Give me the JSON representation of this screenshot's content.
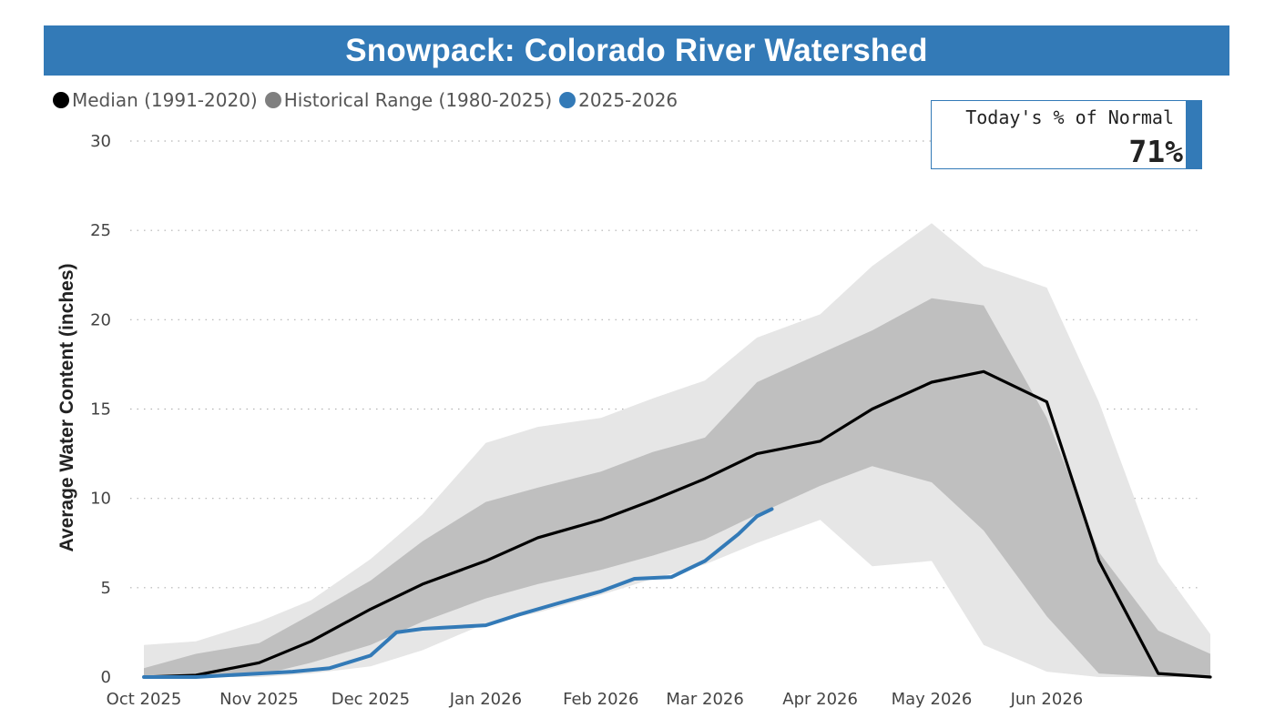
{
  "title": "Snowpack: Colorado River Watershed",
  "legend": {
    "median_label": "Median (1991-2020)",
    "range_label": "Historical Range (1980-2025)",
    "current_label": "2025-2026"
  },
  "kpi": {
    "label": "Today's % of Normal",
    "value": "71%"
  },
  "colors": {
    "header": "#337ab7",
    "median": "#000000",
    "range_legend": "#7f7f7f",
    "range_outer": "#e6e6e6",
    "range_inner": "#bfbfbf",
    "current": "#337ab7"
  },
  "chart_data": {
    "type": "line",
    "xlabel": "",
    "ylabel": "Average Water Content (inches)",
    "ylim": [
      0,
      30
    ],
    "yticks": [
      0,
      5,
      10,
      15,
      20,
      25,
      30
    ],
    "xticks": [
      "Oct 2025",
      "Nov 2025",
      "Dec 2025",
      "Jan 2026",
      "Feb 2026",
      "Mar 2026",
      "Apr 2026",
      "May 2026",
      "Jun 2026"
    ],
    "grid": true,
    "legend_position": "top-left",
    "x": [
      "Oct 1",
      "Oct 15",
      "Nov 1",
      "Nov 15",
      "Dec 1",
      "Dec 15",
      "Jan 1",
      "Jan 15",
      "Feb 1",
      "Feb 15",
      "Mar 1",
      "Mar 15",
      "Apr 1",
      "Apr 15",
      "May 1",
      "May 15",
      "Jun 1",
      "Jun 15",
      "Jul 1",
      "Jul 15"
    ],
    "series": [
      {
        "name": "Median (1991-2020)",
        "values": [
          0,
          0.1,
          0.8,
          2.0,
          3.8,
          5.2,
          6.5,
          7.8,
          8.8,
          9.9,
          11.1,
          12.5,
          13.2,
          15.0,
          16.5,
          17.1,
          15.4,
          6.5,
          0.2,
          0
        ]
      },
      {
        "name": "Historical Range (1980-2025) inner low",
        "values": [
          0,
          0,
          0.1,
          0.8,
          1.8,
          3.1,
          4.4,
          5.2,
          6.0,
          6.8,
          7.7,
          9.1,
          10.7,
          11.8,
          10.9,
          8.2,
          3.4,
          0.2,
          0,
          0
        ]
      },
      {
        "name": "Historical Range (1980-2025) inner high",
        "values": [
          0.5,
          1.3,
          1.9,
          3.5,
          5.4,
          7.6,
          9.8,
          10.6,
          11.5,
          12.6,
          13.4,
          16.5,
          18.1,
          19.4,
          21.2,
          20.8,
          14.5,
          7.0,
          2.6,
          1.3
        ]
      },
      {
        "name": "Historical Range (1980-2025) outer low",
        "values": [
          0,
          0,
          0,
          0.2,
          0.6,
          1.5,
          3.0,
          3.6,
          4.6,
          5.5,
          6.3,
          7.5,
          8.8,
          6.2,
          6.5,
          1.8,
          0.3,
          0,
          0,
          0
        ]
      },
      {
        "name": "Historical Range (1980-2025) outer high",
        "values": [
          1.8,
          2.0,
          3.1,
          4.3,
          6.6,
          9.1,
          13.1,
          14.0,
          14.5,
          15.6,
          16.6,
          19.0,
          20.3,
          23.0,
          25.4,
          23.0,
          21.8,
          15.4,
          6.4,
          2.4
        ]
      },
      {
        "name": "2025-2026",
        "x": [
          "Oct 1",
          "Oct 15",
          "Nov 1",
          "Nov 10",
          "Nov 20",
          "Dec 1",
          "Dec 8",
          "Dec 15",
          "Jan 1",
          "Jan 10",
          "Jan 20",
          "Feb 1",
          "Feb 10",
          "Feb 20",
          "Mar 1",
          "Mar 10",
          "Mar 15",
          "Mar 19"
        ],
        "values": [
          0,
          0,
          0.2,
          0.3,
          0.5,
          1.2,
          2.5,
          2.7,
          2.9,
          3.5,
          4.1,
          4.8,
          5.5,
          5.6,
          6.5,
          8.0,
          9.0,
          9.4
        ]
      }
    ]
  }
}
